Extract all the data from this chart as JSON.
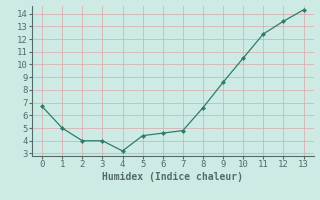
{
  "x": [
    0,
    1,
    2,
    3,
    4,
    5,
    6,
    7,
    8,
    9,
    10,
    11,
    12,
    13
  ],
  "y": [
    6.7,
    5.0,
    4.0,
    4.0,
    3.2,
    4.4,
    4.6,
    4.8,
    6.6,
    8.6,
    10.5,
    12.4,
    13.4,
    14.3
  ],
  "line_color": "#2d7d6e",
  "marker": "D",
  "marker_size": 2.0,
  "bg_color": "#ceeae4",
  "grid_color": "#d9a8a8",
  "xlabel": "Humidex (Indice chaleur)",
  "xlabel_fontsize": 7,
  "tick_fontsize": 6.5,
  "xlim": [
    -0.5,
    13.5
  ],
  "ylim": [
    2.8,
    14.6
  ],
  "yticks": [
    3,
    4,
    5,
    6,
    7,
    8,
    9,
    10,
    11,
    12,
    13,
    14
  ],
  "xticks": [
    0,
    1,
    2,
    3,
    4,
    5,
    6,
    7,
    8,
    9,
    10,
    11,
    12,
    13
  ],
  "spine_color": "#556b6b",
  "linewidth": 0.9
}
